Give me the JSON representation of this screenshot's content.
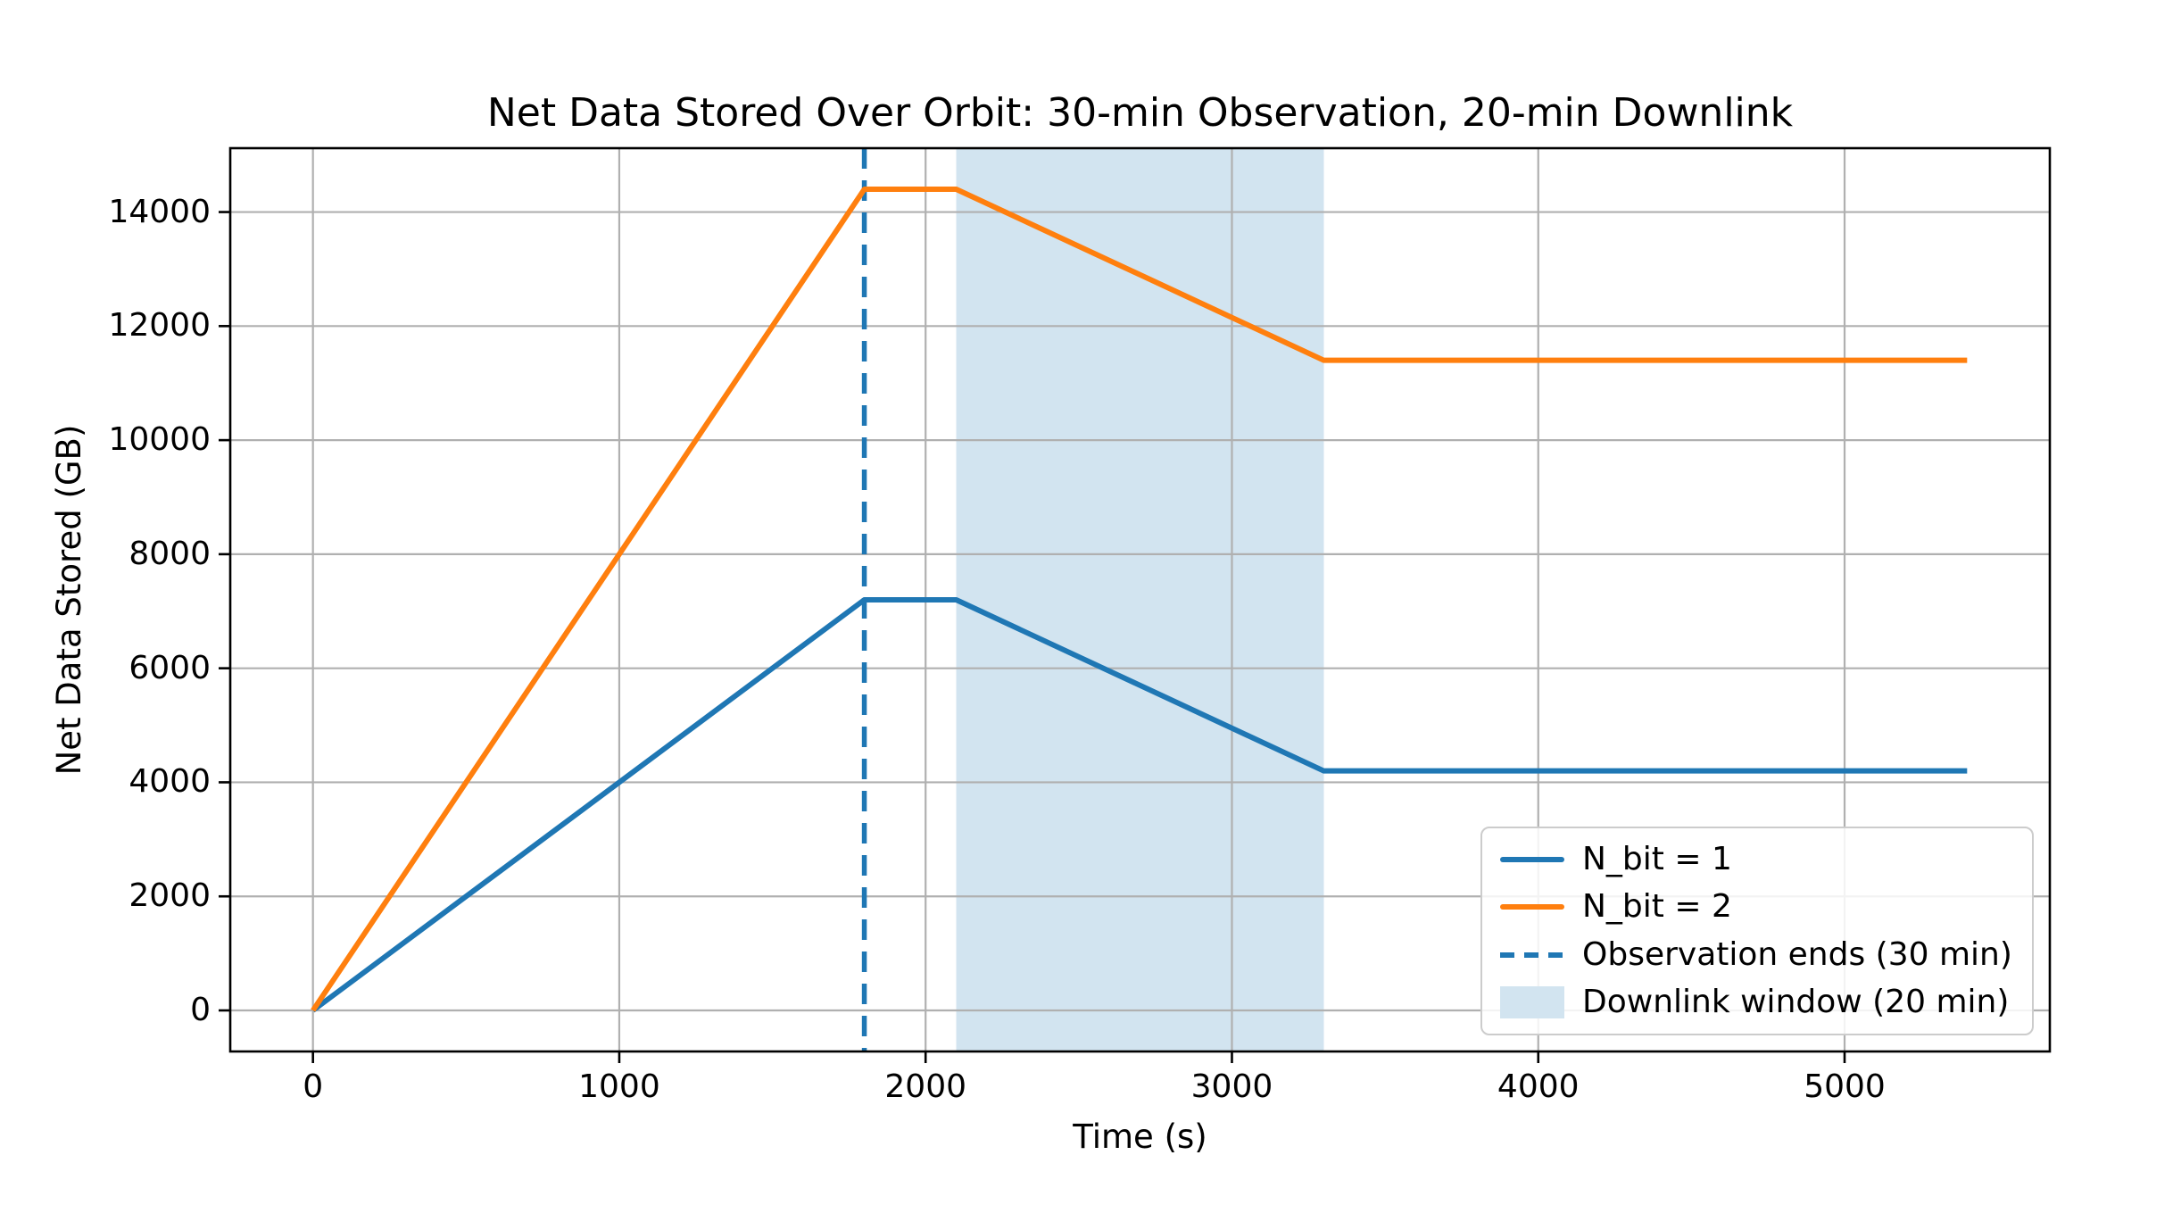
{
  "chart_data": {
    "type": "line",
    "title": "Net Data Stored Over Orbit: 30-min Observation, 20-min Downlink",
    "xlabel": "Time (s)",
    "ylabel": "Net Data Stored (GB)",
    "xlim": [
      -270,
      5670
    ],
    "ylim": [
      -720,
      15120
    ],
    "x_ticks": [
      0,
      1000,
      2000,
      3000,
      4000,
      5000
    ],
    "y_ticks": [
      0,
      2000,
      4000,
      6000,
      8000,
      10000,
      12000,
      14000
    ],
    "grid": true,
    "grid_color": "#b0b0b0",
    "spine_color": "#000000",
    "background": "#ffffff",
    "series": [
      {
        "name": "N_bit = 1",
        "color": "#1f77b4",
        "linestyle": "solid",
        "x": [
          0,
          1800,
          2100,
          3300,
          5400
        ],
        "y": [
          0,
          7200,
          7200,
          4200,
          4200
        ]
      },
      {
        "name": "N_bit = 2",
        "color": "#ff7f0e",
        "linestyle": "solid",
        "x": [
          0,
          1800,
          2100,
          3300,
          5400
        ],
        "y": [
          0,
          14400,
          14400,
          11400,
          11400
        ]
      }
    ],
    "annotations": {
      "vline": {
        "x": 1800,
        "color": "#1f77b4",
        "linestyle": "dashed",
        "label": "Observation ends (30 min)"
      },
      "vspan": {
        "x0": 2100,
        "x1": 3300,
        "color": "#d2e4f0",
        "label": "Downlink window (20 min)"
      }
    },
    "legend_position": "lower right",
    "legend": [
      {
        "label": "N_bit = 1",
        "sample": "line",
        "color": "#1f77b4"
      },
      {
        "label": "N_bit = 2",
        "sample": "line",
        "color": "#ff7f0e"
      },
      {
        "label": "Observation ends (30 min)",
        "sample": "dashed-line",
        "color": "#1f77b4"
      },
      {
        "label": "Downlink window (20 min)",
        "sample": "patch",
        "color": "#d2e4f0"
      }
    ]
  }
}
